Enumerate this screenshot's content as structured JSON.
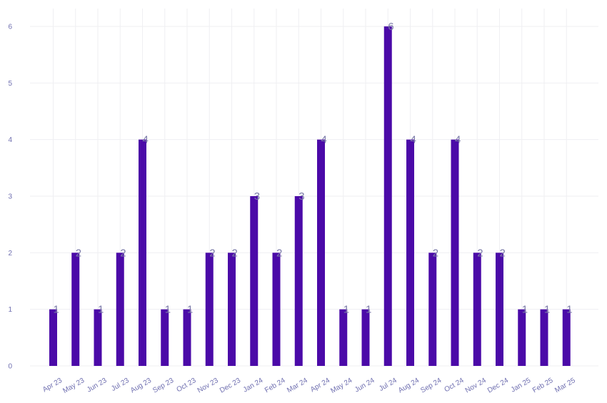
{
  "chart_data": {
    "type": "bar",
    "categories": [
      "Apr 23",
      "May 23",
      "Jun 23",
      "Jul 23",
      "Aug 23",
      "Sep 23",
      "Oct 23",
      "Nov 23",
      "Dec 23",
      "Jan 24",
      "Feb 24",
      "Mar 24",
      "Apr 24",
      "May 24",
      "Jun 24",
      "Jul 24",
      "Aug 24",
      "Sep 24",
      "Oct 24",
      "Nov 24",
      "Dec 24",
      "Jan 25",
      "Feb 25",
      "Mar 25"
    ],
    "values": [
      1,
      2,
      1,
      2,
      4,
      1,
      1,
      2,
      2,
      3,
      2,
      3,
      4,
      1,
      1,
      6,
      4,
      2,
      4,
      2,
      2,
      1,
      1,
      1
    ],
    "ylim": [
      0,
      6
    ],
    "yticks": [
      "0",
      "1",
      "2",
      "3",
      "4",
      "5",
      "6"
    ],
    "grid": true,
    "data_labels": true,
    "bar_color": "#4b0aa8",
    "label_color": "#7a7aa8",
    "tick_color": "#6f6fb0"
  }
}
